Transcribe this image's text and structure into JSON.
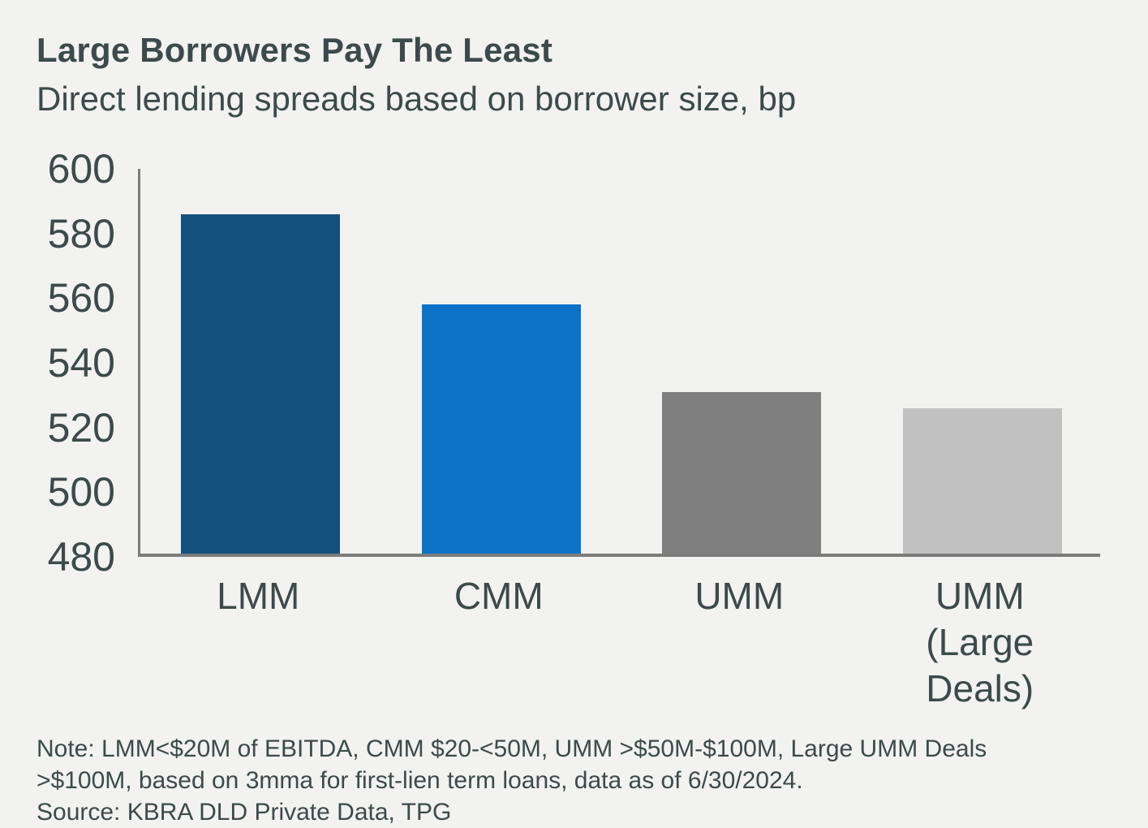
{
  "page": {
    "background": "#f2f2f0",
    "text_color": "#3d4a4b"
  },
  "header": {
    "title": "Large Borrowers Pay The Least",
    "subtitle": "Direct lending spreads based on borrower size, bp"
  },
  "chart_data": {
    "type": "bar",
    "title": "Large Borrowers Pay The Least",
    "subtitle": "Direct lending spreads based on borrower size, bp",
    "unit": "bp",
    "categories": [
      "LMM",
      "CMM",
      "UMM",
      "UMM (Large Deals)"
    ],
    "category_lines": [
      [
        "LMM"
      ],
      [
        "CMM"
      ],
      [
        "UMM"
      ],
      [
        "UMM",
        "(Large",
        "Deals)"
      ]
    ],
    "values": [
      585,
      557,
      530,
      525
    ],
    "bar_colors": [
      "#14517e",
      "#0b74c9",
      "#7f7f7f",
      "#c1c1c1"
    ],
    "xlabel": "",
    "ylabel": "",
    "ylim": [
      480,
      600
    ],
    "yticks": [
      480,
      500,
      520,
      540,
      560,
      580,
      600
    ],
    "grid": false,
    "legend_position": "none",
    "axis_color": "#7c7c7c"
  },
  "footer": {
    "note_lines": [
      "Note: LMM<$20M of EBITDA, CMM $20-<50M, UMM >$50M-$100M, Large UMM Deals",
      ">$100M, based on 3mma for first-lien term loans, data as of 6/30/2024."
    ],
    "source": "Source: KBRA DLD Private Data, TPG"
  }
}
